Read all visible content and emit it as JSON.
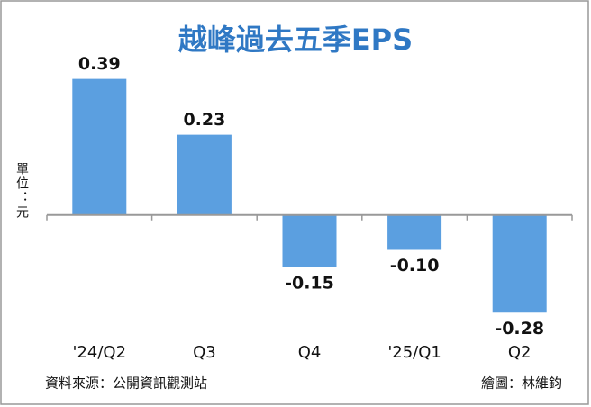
{
  "chart_data": {
    "type": "bar",
    "title": "越峰過去五季EPS",
    "y_label": "單位：元",
    "categories": [
      "'24/Q2",
      "Q3",
      "Q4",
      "'25/Q1",
      "Q2"
    ],
    "values": [
      0.39,
      0.23,
      -0.15,
      -0.1,
      -0.28
    ],
    "value_labels": [
      "0.39",
      "0.23",
      "-0.15",
      "-0.10",
      "-0.28"
    ],
    "color": "#5b9fe0",
    "ylim": [
      -0.3,
      0.5
    ],
    "source": "資料來源：公開資訊觀測站",
    "credit": "繪圖：林維鈞"
  }
}
